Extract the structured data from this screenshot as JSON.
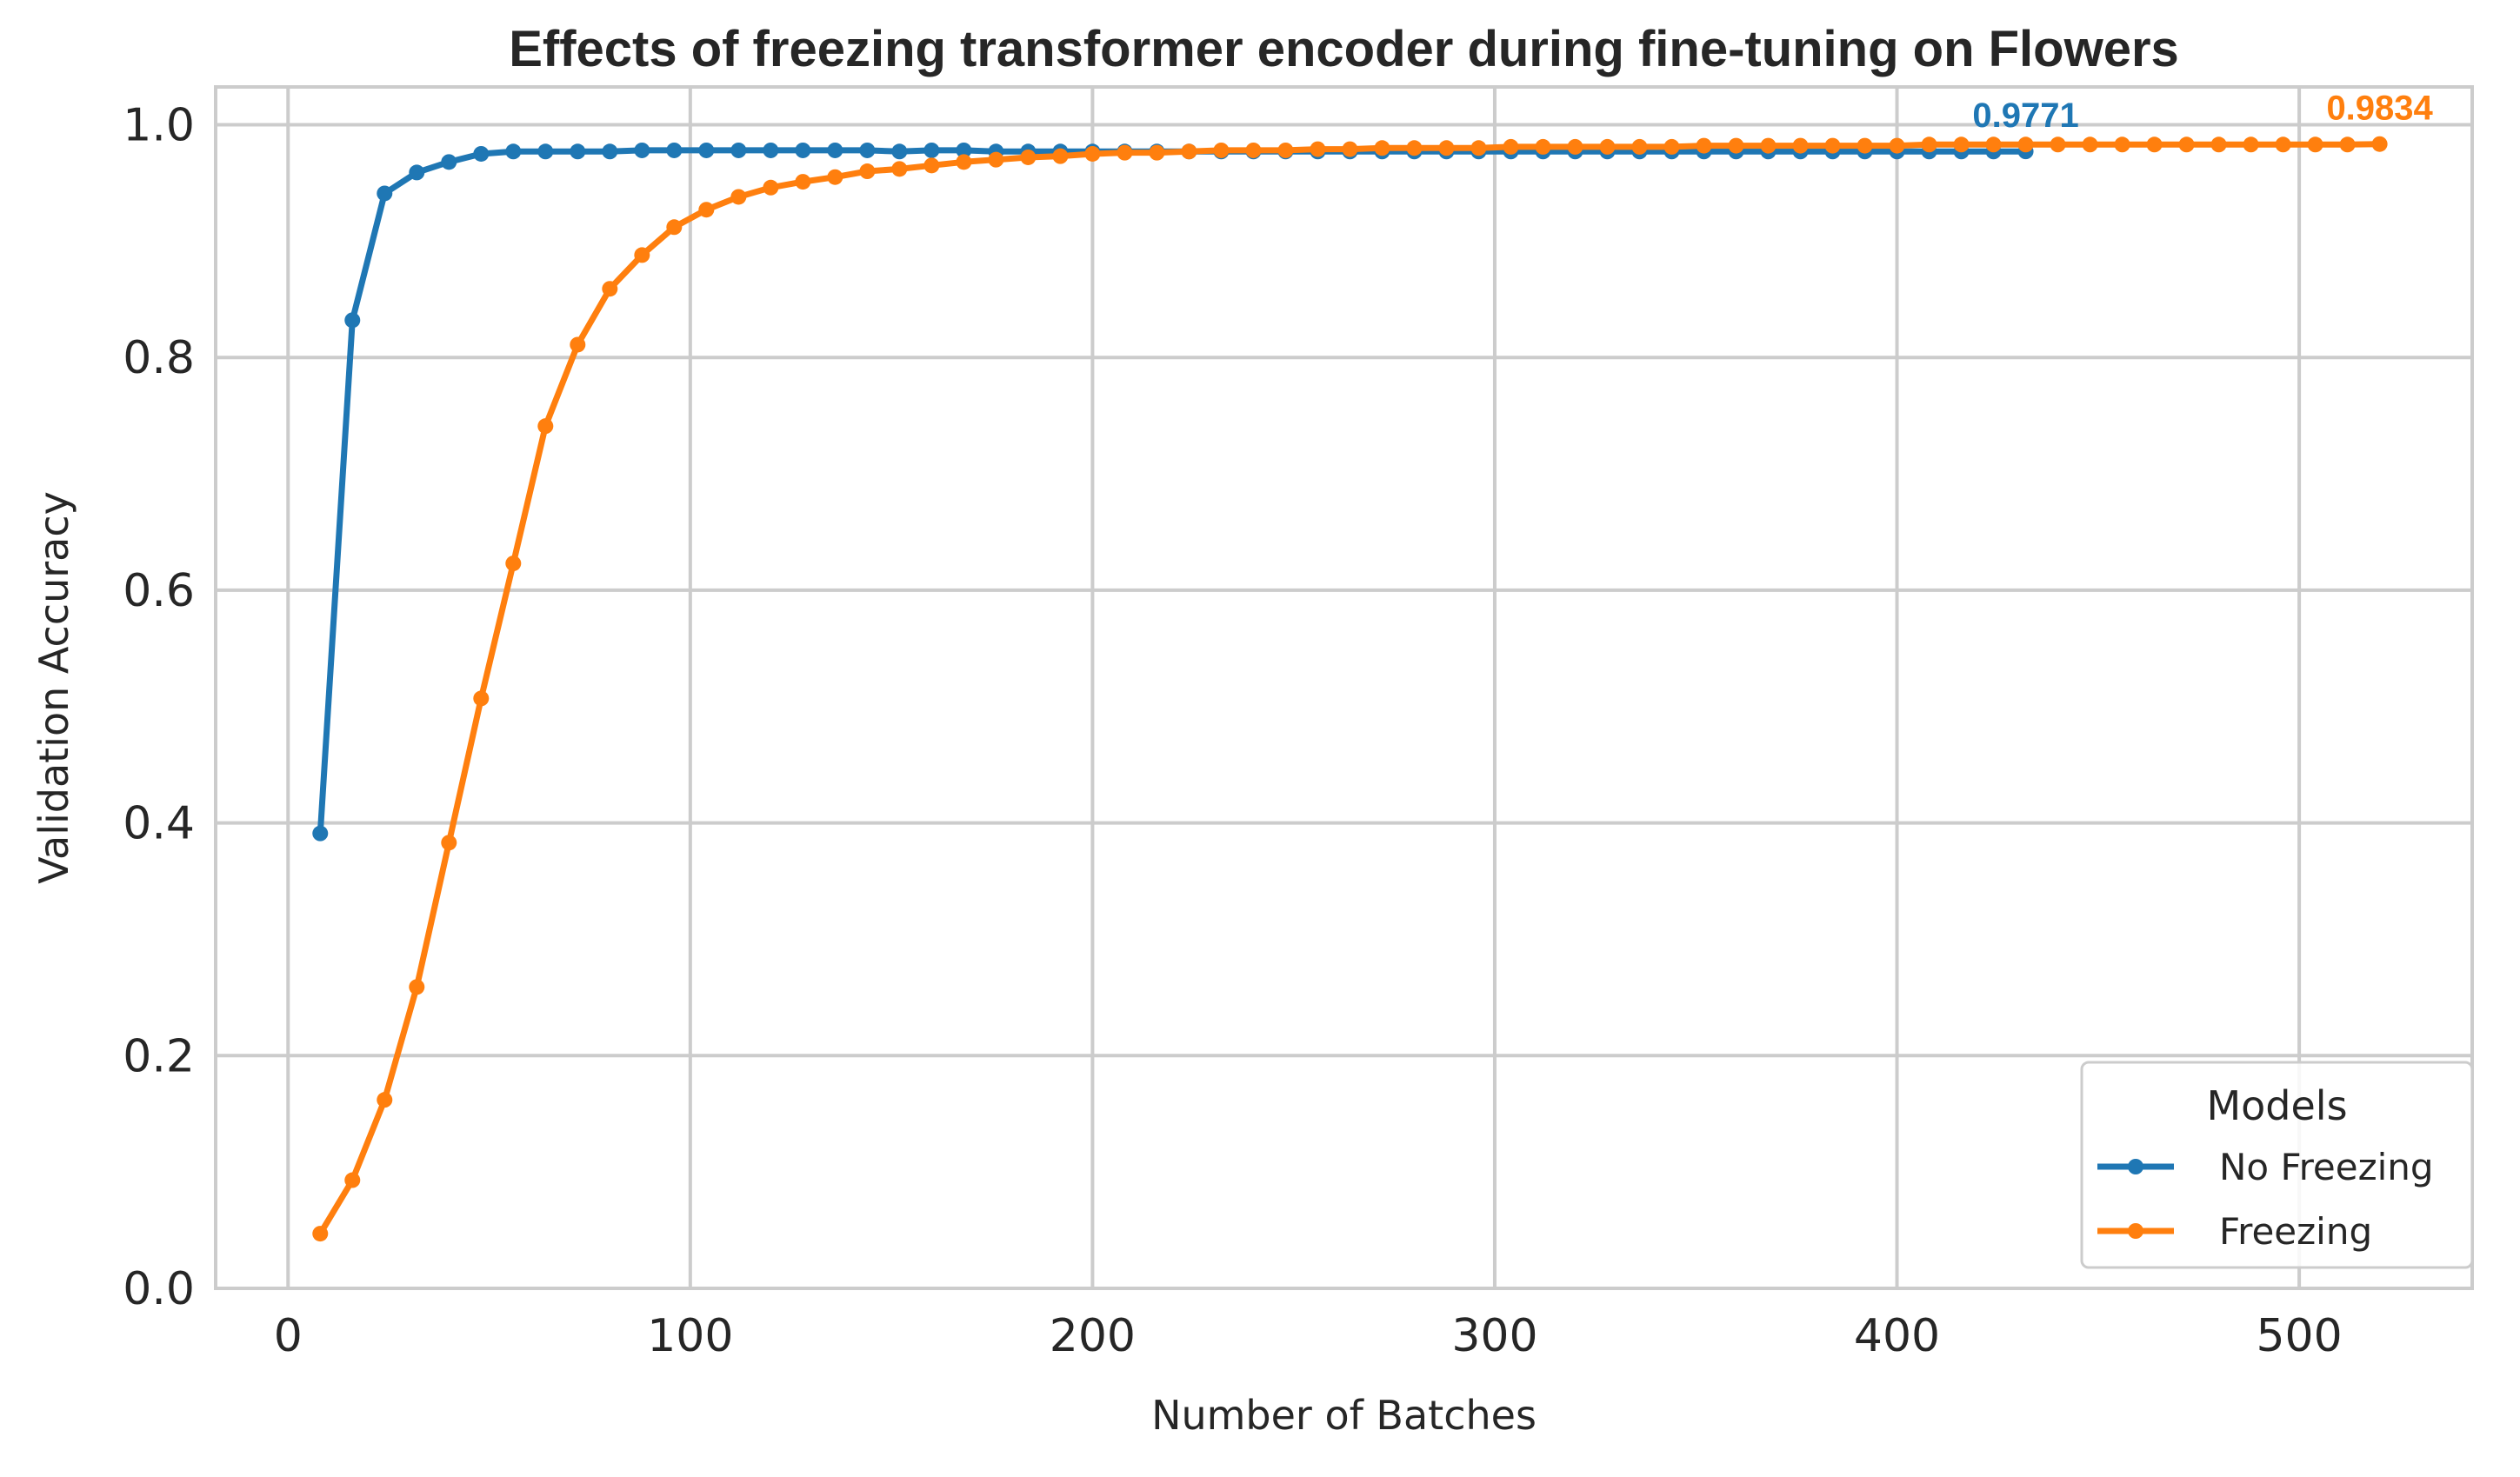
{
  "chart_data": {
    "type": "line",
    "title": "Effects of freezing transformer encoder during fine-tuning on Flowers",
    "xlabel": "Number of Batches",
    "ylabel": "Validation Accuracy",
    "xlim": [
      -18,
      543
    ],
    "ylim": [
      0.0,
      1.0325
    ],
    "xticks": [
      0,
      100,
      200,
      300,
      400,
      500
    ],
    "xtick_labels": [
      "0",
      "100",
      "200",
      "300",
      "400",
      "500"
    ],
    "yticks": [
      0.0,
      0.2,
      0.4,
      0.6,
      0.8,
      1.0
    ],
    "ytick_labels": [
      "0.0",
      "0.2",
      "0.4",
      "0.6",
      "0.8",
      "1.0"
    ],
    "grid": true,
    "legend": {
      "title": "Models",
      "placement": "bottom-right"
    },
    "series": [
      {
        "name": "No Freezing",
        "color": "#1f77b4",
        "end_label": "0.9771",
        "x": [
          8,
          16,
          24,
          32,
          40,
          48,
          56,
          64,
          72,
          80,
          88,
          96,
          104,
          112,
          120,
          128,
          136,
          144,
          152,
          160,
          168,
          176,
          184,
          192,
          200,
          208,
          216,
          224,
          232,
          240,
          248,
          256,
          264,
          272,
          280,
          288,
          296,
          304,
          312,
          320,
          328,
          336,
          344,
          352,
          360,
          368,
          376,
          384,
          392,
          400,
          408,
          416,
          424,
          432
        ],
        "y": [
          0.391,
          0.832,
          0.941,
          0.959,
          0.968,
          0.975,
          0.977,
          0.977,
          0.977,
          0.977,
          0.978,
          0.978,
          0.978,
          0.978,
          0.978,
          0.978,
          0.978,
          0.978,
          0.977,
          0.978,
          0.978,
          0.977,
          0.977,
          0.977,
          0.977,
          0.977,
          0.977,
          0.977,
          0.977,
          0.977,
          0.977,
          0.977,
          0.977,
          0.977,
          0.977,
          0.977,
          0.977,
          0.977,
          0.977,
          0.977,
          0.977,
          0.977,
          0.977,
          0.977,
          0.977,
          0.977,
          0.977,
          0.977,
          0.977,
          0.977,
          0.977,
          0.977,
          0.977,
          0.9771
        ]
      },
      {
        "name": "Freezing",
        "color": "#ff7f0e",
        "end_label": "0.9834",
        "x": [
          8,
          16,
          24,
          32,
          40,
          48,
          56,
          64,
          72,
          80,
          88,
          96,
          104,
          112,
          120,
          128,
          136,
          144,
          152,
          160,
          168,
          176,
          184,
          192,
          200,
          208,
          216,
          224,
          232,
          240,
          248,
          256,
          264,
          272,
          280,
          288,
          296,
          304,
          312,
          320,
          328,
          336,
          344,
          352,
          360,
          368,
          376,
          384,
          392,
          400,
          408,
          416,
          424,
          432,
          440,
          448,
          456,
          464,
          472,
          480,
          488,
          496,
          504,
          512,
          520
        ],
        "y": [
          0.047,
          0.093,
          0.162,
          0.259,
          0.383,
          0.507,
          0.623,
          0.741,
          0.811,
          0.859,
          0.888,
          0.912,
          0.927,
          0.938,
          0.946,
          0.951,
          0.955,
          0.96,
          0.962,
          0.965,
          0.968,
          0.97,
          0.972,
          0.973,
          0.975,
          0.976,
          0.976,
          0.977,
          0.978,
          0.978,
          0.978,
          0.979,
          0.979,
          0.98,
          0.98,
          0.98,
          0.98,
          0.981,
          0.981,
          0.981,
          0.981,
          0.981,
          0.981,
          0.982,
          0.982,
          0.982,
          0.982,
          0.982,
          0.982,
          0.982,
          0.983,
          0.983,
          0.983,
          0.983,
          0.983,
          0.983,
          0.983,
          0.983,
          0.983,
          0.983,
          0.983,
          0.983,
          0.983,
          0.983,
          0.9834
        ]
      }
    ]
  }
}
